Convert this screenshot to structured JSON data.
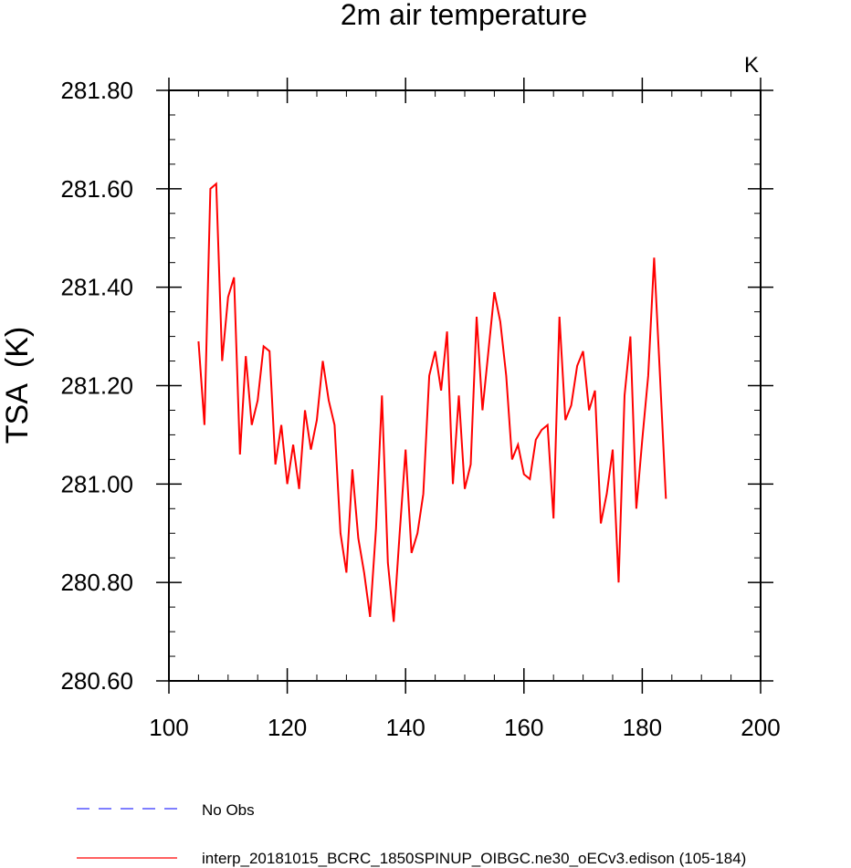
{
  "chart_data": {
    "type": "line",
    "title": "2m air temperature",
    "units_label": "K",
    "xlabel": "",
    "ylabel": "TSA  (K)",
    "xlim": [
      100,
      200
    ],
    "ylim": [
      280.6,
      281.8
    ],
    "x_ticks": [
      "100",
      "120",
      "140",
      "160",
      "180",
      "200"
    ],
    "y_ticks": [
      "280.60",
      "280.80",
      "281.00",
      "281.20",
      "281.40",
      "281.60",
      "281.80"
    ],
    "x_tick_values": [
      100,
      120,
      140,
      160,
      180,
      200
    ],
    "y_tick_values": [
      280.6,
      280.8,
      281.0,
      281.2,
      281.4,
      281.6,
      281.8
    ],
    "legend_position": "bottom",
    "series": [
      {
        "name": "No Obs",
        "color": "#3333ff",
        "style": "dashed",
        "x": [],
        "values": []
      },
      {
        "name": "interp_20181015_BCRC_1850SPINUP_OIBGC.ne30_oECv3.edison (105-184)",
        "color": "#ff0000",
        "style": "solid",
        "x": [
          105,
          106,
          107,
          108,
          109,
          110,
          111,
          112,
          113,
          114,
          115,
          116,
          117,
          118,
          119,
          120,
          121,
          122,
          123,
          124,
          125,
          126,
          127,
          128,
          129,
          130,
          131,
          132,
          133,
          134,
          135,
          136,
          137,
          138,
          139,
          140,
          141,
          142,
          143,
          144,
          145,
          146,
          147,
          148,
          149,
          150,
          151,
          152,
          153,
          154,
          155,
          156,
          157,
          158,
          159,
          160,
          161,
          162,
          163,
          164,
          165,
          166,
          167,
          168,
          169,
          170,
          171,
          172,
          173,
          174,
          175,
          176,
          177,
          178,
          179,
          180,
          181,
          182,
          183,
          184
        ],
        "values": [
          281.29,
          281.12,
          281.6,
          281.61,
          281.25,
          281.38,
          281.42,
          281.06,
          281.26,
          281.12,
          281.17,
          281.28,
          281.27,
          281.04,
          281.12,
          281.0,
          281.08,
          280.99,
          281.15,
          281.07,
          281.13,
          281.25,
          281.17,
          281.12,
          280.9,
          280.82,
          281.03,
          280.89,
          280.82,
          280.73,
          280.91,
          281.18,
          280.84,
          280.72,
          280.9,
          281.07,
          280.86,
          280.9,
          280.98,
          281.22,
          281.27,
          281.19,
          281.31,
          281.0,
          281.18,
          280.99,
          281.04,
          281.34,
          281.15,
          281.27,
          281.39,
          281.33,
          281.22,
          281.05,
          281.08,
          281.02,
          281.01,
          281.09,
          281.11,
          281.12,
          280.93,
          281.34,
          281.13,
          281.16,
          281.24,
          281.27,
          281.15,
          281.19,
          280.92,
          280.98,
          281.07,
          280.8,
          281.18,
          281.3,
          280.95,
          281.09,
          281.22,
          281.46,
          281.22,
          280.97
        ]
      }
    ]
  }
}
